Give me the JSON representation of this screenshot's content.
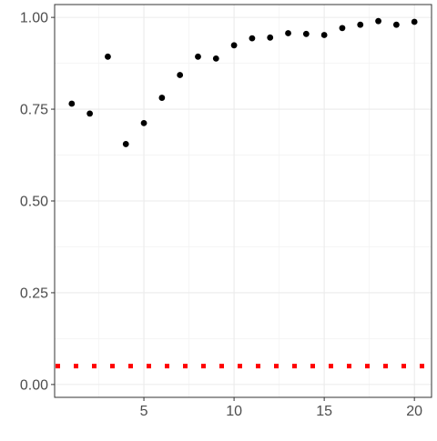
{
  "chart_data": {
    "type": "scatter",
    "title": "",
    "xlabel": "",
    "ylabel": "",
    "xlim": [
      0.05,
      20.95
    ],
    "ylim": [
      -0.035,
      1.035
    ],
    "x_ticks": [
      5,
      10,
      15,
      20
    ],
    "x_minor_ticks": [
      2.5,
      7.5,
      12.5,
      17.5
    ],
    "y_ticks": [
      0.0,
      0.25,
      0.5,
      0.75,
      1.0
    ],
    "y_tick_labels": [
      "0.00",
      "0.25",
      "0.50",
      "0.75",
      "1.00"
    ],
    "y_minor_ticks": [
      0.125,
      0.375,
      0.625,
      0.875
    ],
    "grid": true,
    "theme": "bw",
    "series": [
      {
        "kind": "points",
        "color": "#000000",
        "x": [
          1,
          2,
          3,
          4,
          5,
          6,
          7,
          8,
          9,
          10,
          11,
          12,
          13,
          14,
          15,
          16,
          17,
          18,
          19,
          20
        ],
        "y": [
          0.765,
          0.738,
          0.893,
          0.655,
          0.712,
          0.781,
          0.843,
          0.893,
          0.888,
          0.924,
          0.943,
          0.945,
          0.957,
          0.955,
          0.952,
          0.971,
          0.98,
          0.99,
          0.98,
          0.988
        ]
      },
      {
        "kind": "hline",
        "style": "dotted",
        "color": "#ff0000",
        "y": 0.05
      }
    ]
  }
}
